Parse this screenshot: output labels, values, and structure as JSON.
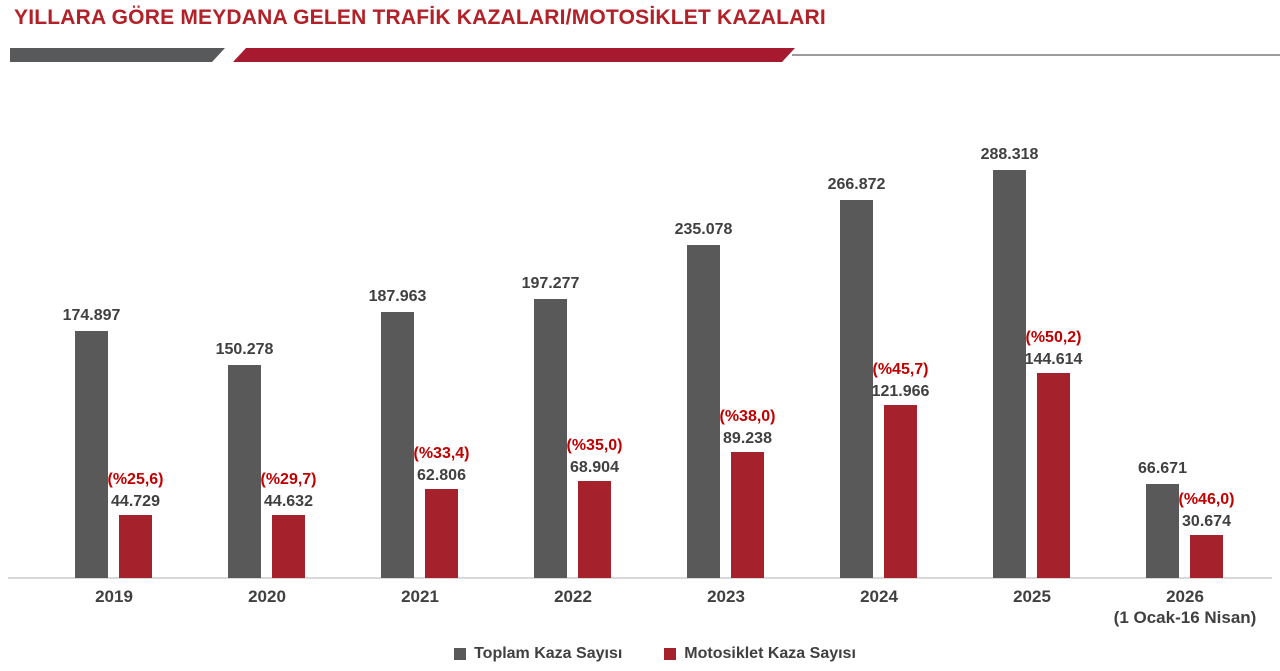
{
  "title": "YILLARA GÖRE MEYDANA GELEN TRAFİK KAZALARI/MOTOSİKLET KAZALARI",
  "colors": {
    "title_red": "#b22028",
    "divider_gray": "#58595b",
    "divider_red": "#a6192e",
    "bar_gray": "#595959",
    "bar_red": "#a5222d",
    "pct_red": "#c00000",
    "label_gray": "#404040",
    "axis_line": "#d9d9d9"
  },
  "legend": {
    "total": "Toplam Kaza Sayısı",
    "moto": "Motosiklet Kaza Sayısı"
  },
  "chart_data": {
    "type": "bar",
    "title": "YILLARA GÖRE MEYDANA GELEN TRAFİK KAZALARI/MOTOSİKLET KAZALARI",
    "categories": [
      "2019",
      "2020",
      "2021",
      "2022",
      "2023",
      "2024",
      "2025",
      "2026"
    ],
    "category_sublabels": [
      "",
      "",
      "",
      "",
      "",
      "",
      "",
      "(1 Ocak-16 Nisan)"
    ],
    "ylim": [
      0,
      300000
    ],
    "grid": false,
    "legend_position": "bottom",
    "series": [
      {
        "name": "Toplam Kaza Sayısı",
        "color": "#595959",
        "values": [
          174897,
          150278,
          187963,
          197277,
          235078,
          266872,
          288318,
          66671
        ],
        "labels": [
          "174.897",
          "150.278",
          "187.963",
          "197.277",
          "235.078",
          "266.872",
          "288.318",
          "66.671"
        ]
      },
      {
        "name": "Motosiklet Kaza Sayısı",
        "color": "#a5222d",
        "values": [
          44729,
          44632,
          62806,
          68904,
          89238,
          121966,
          144614,
          30674
        ],
        "labels": [
          "44.729",
          "44.632",
          "62.806",
          "68.904",
          "89.238",
          "121.966",
          "144.614",
          "30.674"
        ],
        "pct_labels": [
          "(%25,6)",
          "(%29,7)",
          "(%33,4)",
          "(%35,0)",
          "(%38,0)",
          "(%45,7)",
          "(%50,2)",
          "(%46,0)"
        ]
      }
    ]
  }
}
